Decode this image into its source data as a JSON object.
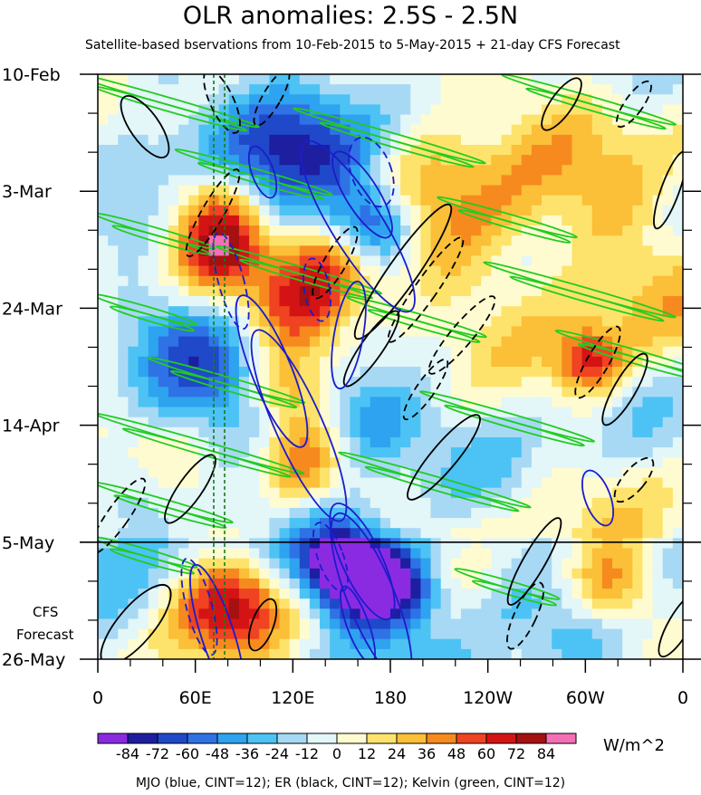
{
  "chart_data": {
    "type": "heatmap",
    "title": "OLR anomalies: 2.5S - 2.5N",
    "subtitle": "Satellite-based bservations from 10-Feb-2015 to 5-May-2015 + 21-day CFS Forecast",
    "x_ticks": [
      "0",
      "60E",
      "120E",
      "180",
      "120W",
      "60W",
      "0"
    ],
    "y_ticks": [
      "10-Feb",
      "3-Mar",
      "24-Mar",
      "14-Apr",
      "5-May",
      "26-May"
    ],
    "forecast_label": [
      "CFS",
      "Forecast"
    ],
    "observation_end": "5-May",
    "colorbar": {
      "ticks": [
        "-84",
        "-72",
        "-60",
        "-48",
        "-36",
        "-24",
        "-12",
        "0",
        "12",
        "24",
        "36",
        "48",
        "60",
        "72",
        "84"
      ],
      "colors": [
        "#8a2be2",
        "#1e1ea0",
        "#1f49c9",
        "#2f72e6",
        "#2ea3ef",
        "#4cc3f4",
        "#a7d9f5",
        "#e3f6f8",
        "#fffbd0",
        "#fde36b",
        "#fbbf38",
        "#f68a1f",
        "#ef4322",
        "#d41414",
        "#a51010",
        "#f56fb6"
      ],
      "units": "W/m^2"
    },
    "contour_legend": "MJO (blue, CINT=12); ER (black, CINT=12); Kelvin (green, CINT=12)",
    "series_colors": {
      "MJO": "#1c1ccc",
      "ER": "#000000",
      "Kelvin": "#22cc22"
    }
  }
}
